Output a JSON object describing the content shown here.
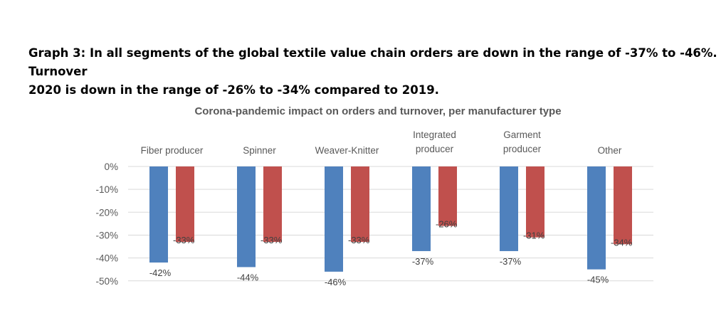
{
  "heading": {
    "line1": "Graph 3: In all segments of the global textile value chain orders are down in the range of -37% to -46%. Turnover",
    "line2": "2020 is down in the range of -26% to -34% compared to 2019."
  },
  "chart_data": {
    "type": "bar",
    "title": "Corona-pandemic impact on orders and turnover, per manufacturer type",
    "categories": [
      [
        "Fiber producer"
      ],
      [
        "Spinner"
      ],
      [
        "Weaver-Knitter"
      ],
      [
        "Integrated",
        "producer"
      ],
      [
        "Garment",
        "producer"
      ],
      [
        "Other"
      ]
    ],
    "series": [
      {
        "color": "#4f81bd",
        "values": [
          -42,
          -44,
          -46,
          -37,
          -37,
          -45
        ],
        "labels": [
          "-42%",
          "-44%",
          "-46%",
          "-37%",
          "-37%",
          "-45%"
        ]
      },
      {
        "color": "#c0504d",
        "values": [
          -33,
          -33,
          -33,
          -26,
          -31,
          -34
        ],
        "labels": [
          "-33%",
          "-33%",
          "-33%",
          "-26%",
          "-31%",
          "-34%"
        ]
      }
    ],
    "yticks": [
      "0%",
      "-10%",
      "-20%",
      "-30%",
      "-40%",
      "-50%"
    ],
    "ylim": [
      -50,
      0
    ],
    "grid": true,
    "category_axis_position": "top",
    "xlabel": "",
    "ylabel": ""
  }
}
